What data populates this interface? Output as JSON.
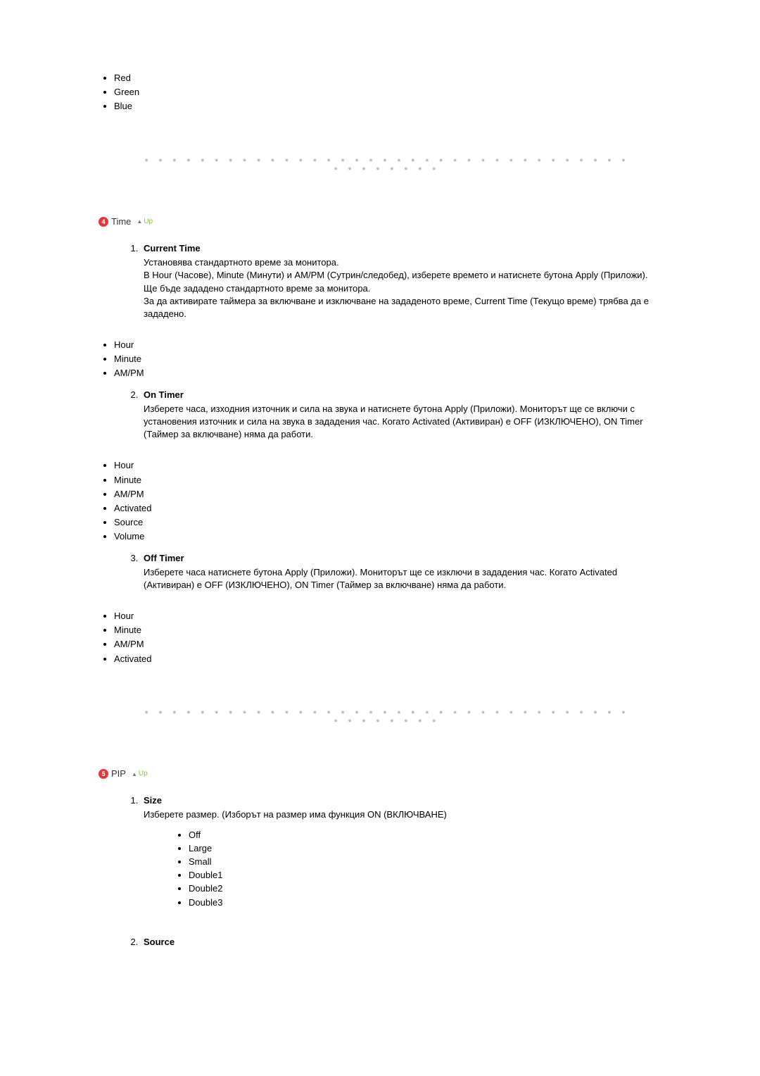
{
  "colors": {
    "badge_bg": "#e03a3e",
    "badge_fg": "#ffffff",
    "up_text": "#8bc34a",
    "divider_dots": "#bdbdbd",
    "body_text": "#000000"
  },
  "colorList": {
    "items": [
      "Red",
      "Green",
      "Blue"
    ]
  },
  "time": {
    "badge": "4",
    "title": "Time",
    "up": "Up",
    "items": [
      {
        "title": "Current Time",
        "desc": "Установява стандартното време за монитора.\nВ Hour (Часове), Minute (Минути) и AM/PM (Сутрин/следобед), изберете времето и натиснете бутона Apply (Приложи).\nЩе бъде зададено стандартното време за монитора.\nЗа да активирате таймера за включване и изключване на зададеното време, Current Time (Текущо време) трябва да е зададено.",
        "bullets": [
          "Hour",
          "Minute",
          "AM/PM"
        ]
      },
      {
        "title": "On Timer",
        "desc": "Изберете часа, изходния източник и сила на звука и натиснете бутона Apply (Приложи). Мониторът ще се включи с установения източник и сила на звука в зададения час. Когато Activated (Активиран) е OFF (ИЗКЛЮЧЕНО), ON Timer (Таймер за включване) няма да работи.",
        "bullets": [
          "Hour",
          "Minute",
          "AM/PM",
          "Activated",
          "Source",
          "Volume"
        ]
      },
      {
        "title": "Off Timer",
        "desc": "Изберете часа натиснете бутона Apply (Приложи). Мониторът ще се изключи в зададения час. Когато Activated (Активиран) е OFF (ИЗКЛЮЧЕНО), ON Timer (Таймер за включване) няма да работи.",
        "bullets": [
          "Hour",
          "Minute",
          "AM/PM",
          "Activated"
        ]
      }
    ]
  },
  "pip": {
    "badge": "5",
    "title": "PIP",
    "up": "Up",
    "items": [
      {
        "title": "Size",
        "desc": "Изберете размер. (Изборът на размер има функция ON (ВКЛЮЧВАНЕ)",
        "bullets": [
          "Off",
          "Large",
          "Small",
          "Double1",
          "Double2",
          "Double3"
        ]
      },
      {
        "title": "Source",
        "desc": "",
        "bullets": []
      }
    ]
  }
}
